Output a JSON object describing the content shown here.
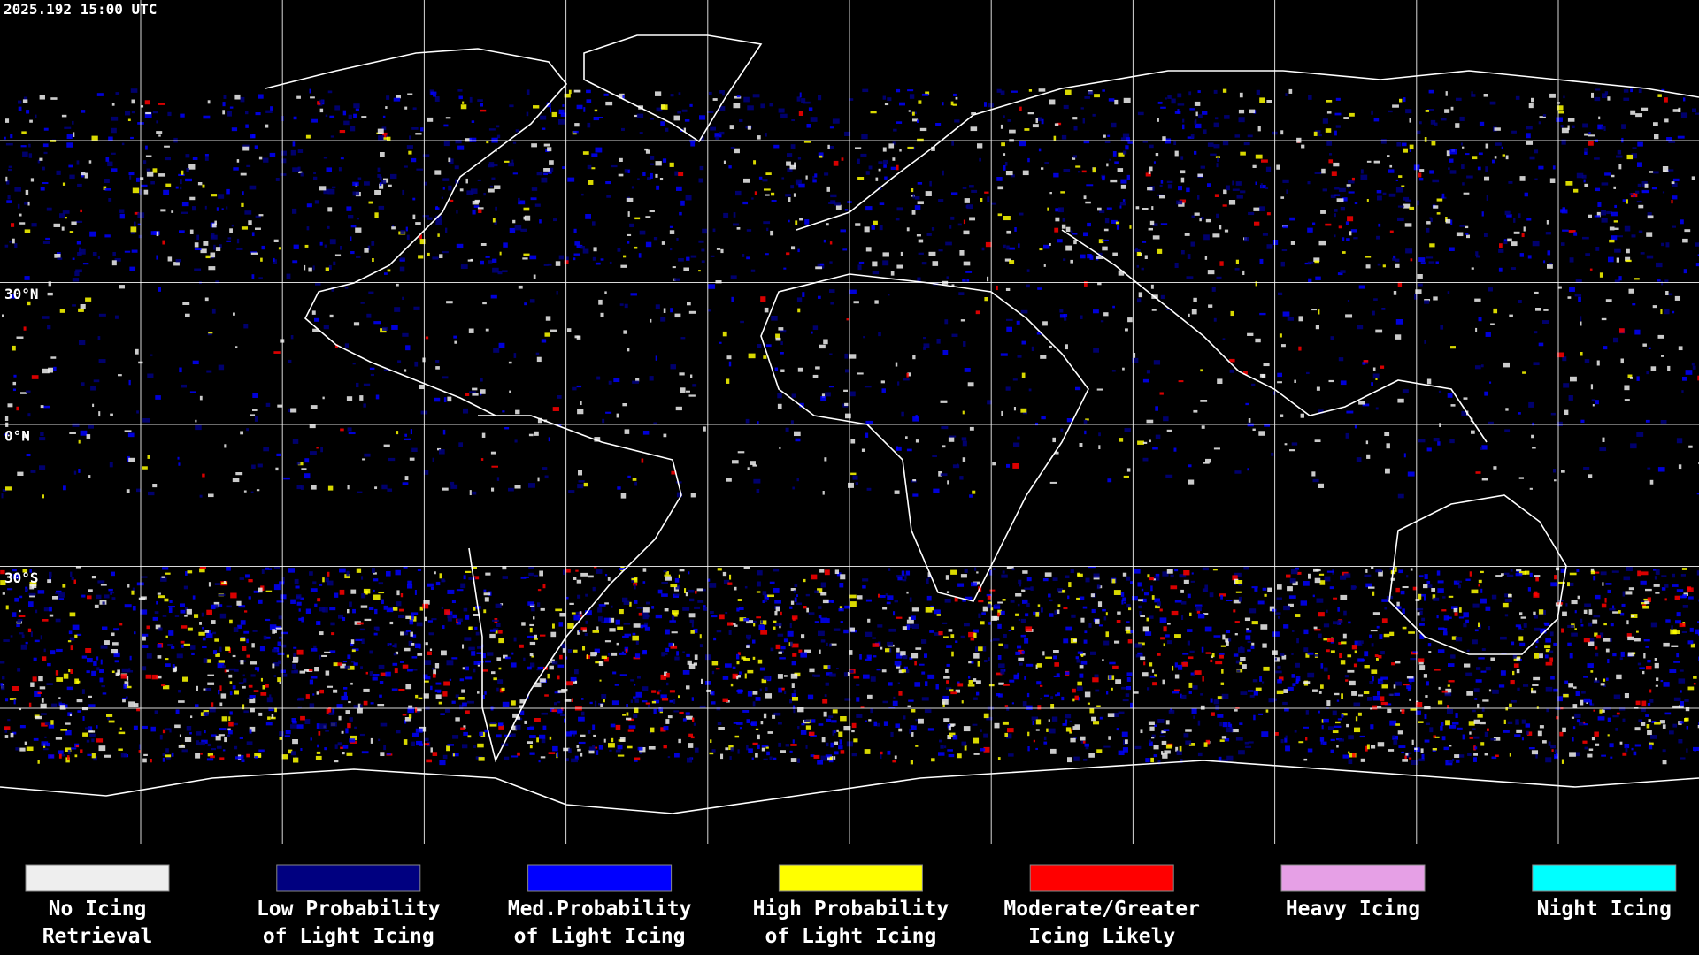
{
  "header": {
    "timestamp": "2025.192 15:00 UTC"
  },
  "latitude_labels": [
    "30°N",
    "0°N",
    "30°S"
  ],
  "legend": [
    {
      "lines": [
        "No Icing",
        "Retrieval"
      ],
      "color": "#eeeeee"
    },
    {
      "lines": [
        "Low Probability",
        "of Light Icing"
      ],
      "color": "#000080"
    },
    {
      "lines": [
        "Med.Probability",
        "of Light Icing"
      ],
      "color": "#0000ff"
    },
    {
      "lines": [
        "High Probability",
        "of Light Icing"
      ],
      "color": "#ffff00"
    },
    {
      "lines": [
        "Moderate/Greater",
        "Icing Likely"
      ],
      "color": "#ff0000"
    },
    {
      "lines": [
        "Heavy Icing"
      ],
      "color": "#e6a0e6"
    },
    {
      "lines": [
        "Night Icing"
      ],
      "color": "#00ffff"
    }
  ]
}
